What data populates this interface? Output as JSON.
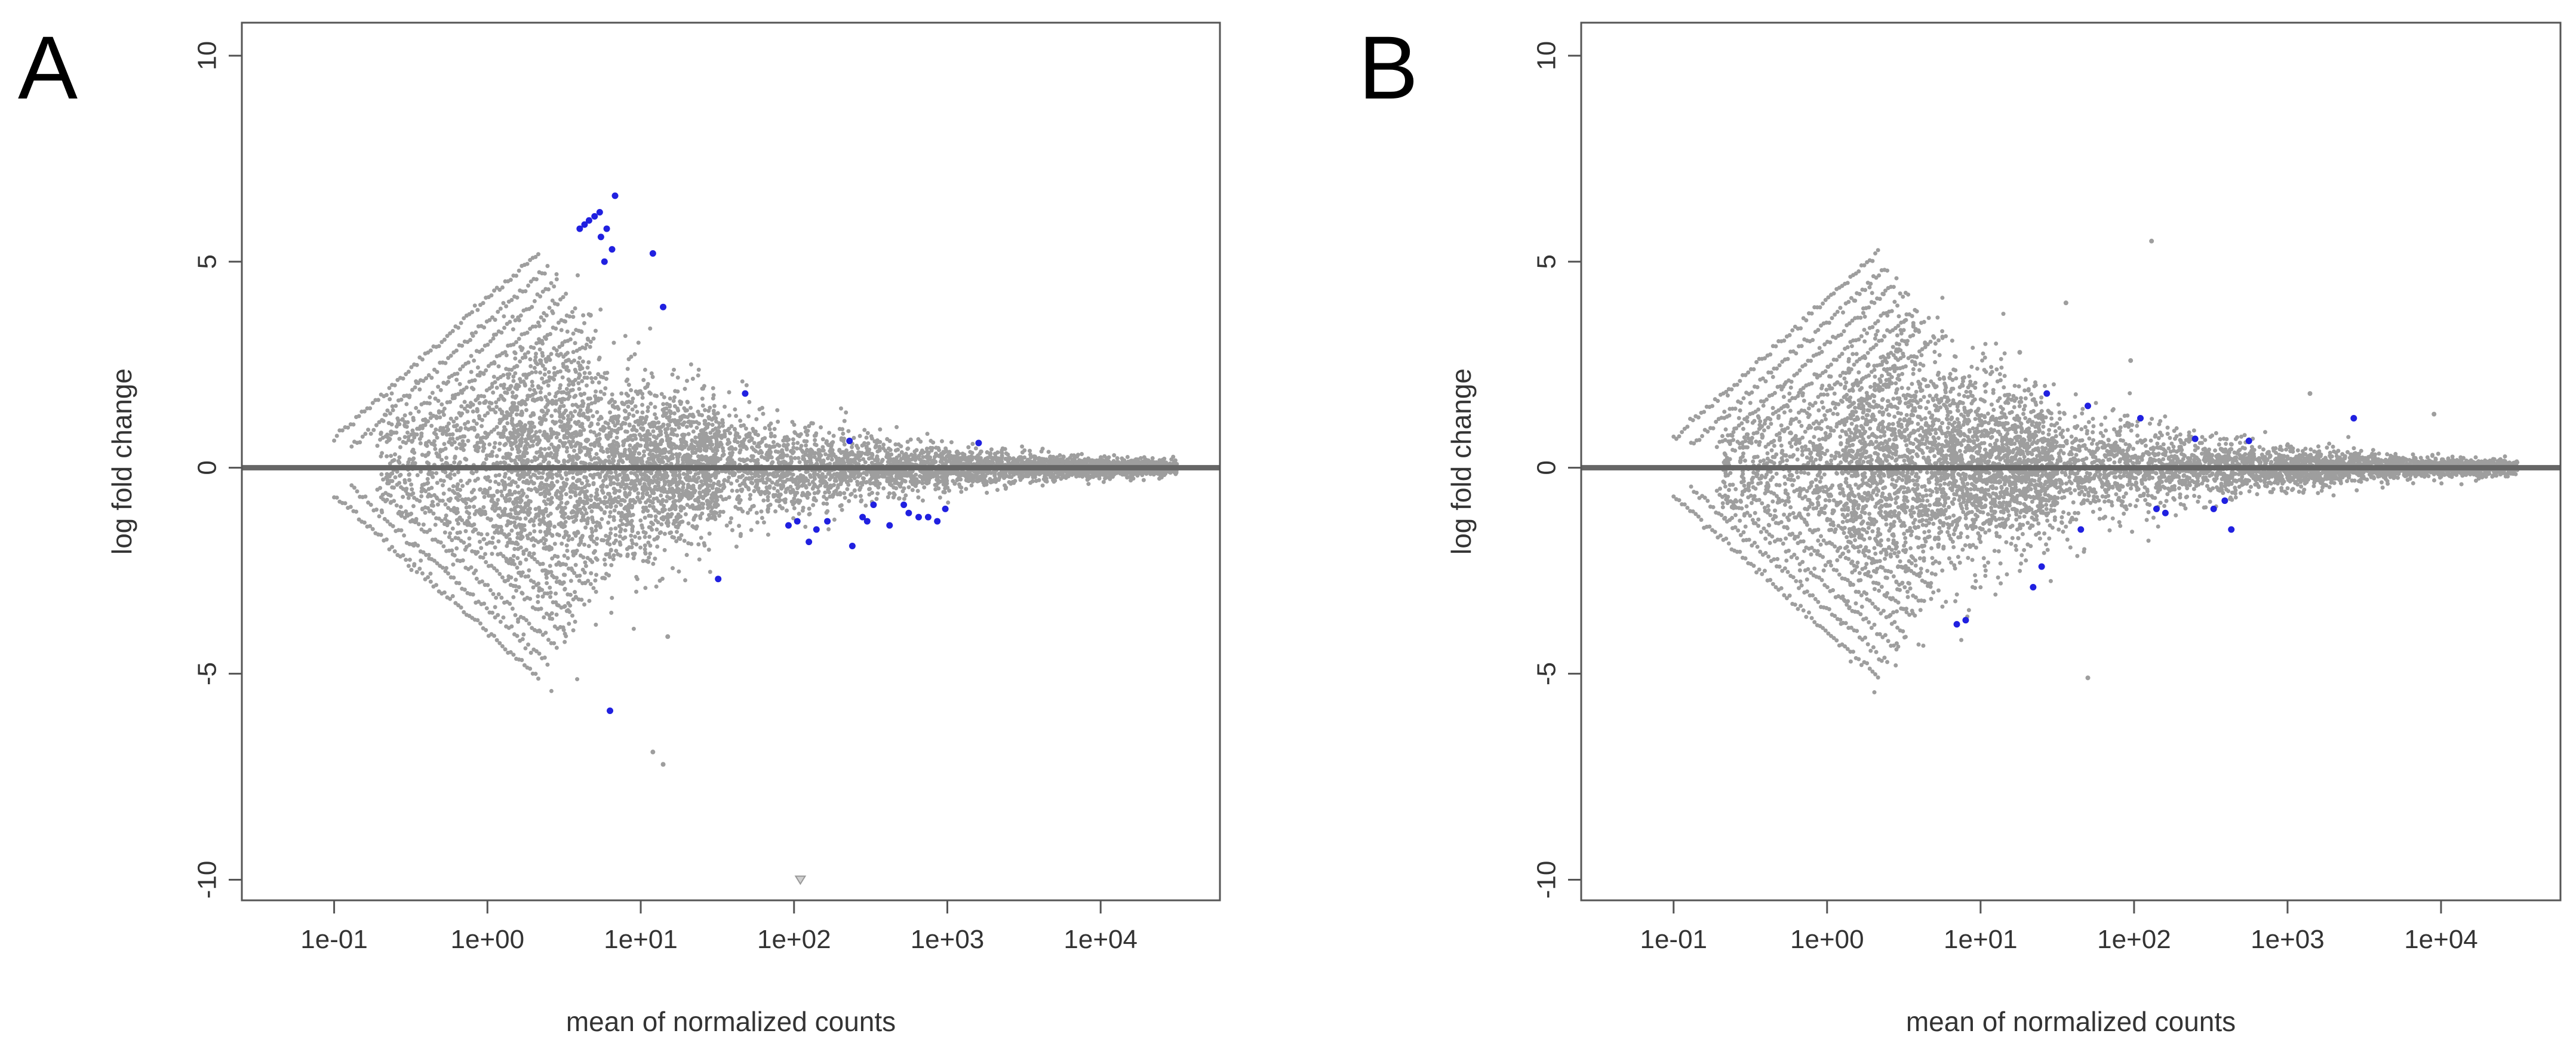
{
  "chart_data": [
    {
      "type": "scatter",
      "panel_label": "A",
      "title": "",
      "xlabel": "mean of normalized counts",
      "ylabel": "log fold change",
      "x_scale": "log10",
      "xlim": [
        0.025,
        60000
      ],
      "ylim": [
        -10.5,
        10.8
      ],
      "x_ticks": [
        0.1,
        1,
        10,
        100,
        1000,
        10000
      ],
      "x_tick_labels": [
        "1e-01",
        "1e+00",
        "1e+01",
        "1e+02",
        "1e+03",
        "1e+04"
      ],
      "y_ticks": [
        -10,
        -5,
        0,
        5,
        10
      ],
      "y_tick_labels": [
        "-10",
        "-5",
        "0",
        "5",
        "10"
      ],
      "reference_line_y": 0,
      "colors": {
        "not_significant": "#9e9e9e",
        "significant": "#2020e0",
        "reference_line": "#666666"
      },
      "cloud": {
        "max_abs_lfc": 6.5,
        "outliers": [
          [
            4.7,
            3.7
          ],
          [
            15,
            -4.1
          ],
          [
            28,
            1.2
          ],
          [
            12,
            -6.9
          ],
          [
            14,
            -7.2
          ]
        ]
      },
      "significant_points": [
        [
          4.0,
          5.8
        ],
        [
          4.3,
          5.9
        ],
        [
          4.6,
          6.0
        ],
        [
          5.0,
          6.1
        ],
        [
          5.4,
          6.2
        ],
        [
          6.8,
          6.6
        ],
        [
          5.5,
          5.6
        ],
        [
          6.0,
          5.8
        ],
        [
          6.5,
          5.3
        ],
        [
          5.8,
          5.0
        ],
        [
          12.0,
          5.2
        ],
        [
          14.0,
          3.9
        ],
        [
          48,
          1.8
        ],
        [
          230,
          0.65
        ],
        [
          1600,
          0.6
        ],
        [
          6.3,
          -5.9
        ],
        [
          32,
          -2.7
        ],
        [
          92,
          -1.4
        ],
        [
          105,
          -1.3
        ],
        [
          125,
          -1.8
        ],
        [
          140,
          -1.5
        ],
        [
          165,
          -1.3
        ],
        [
          240,
          -1.9
        ],
        [
          280,
          -1.2
        ],
        [
          300,
          -1.3
        ],
        [
          330,
          -0.9
        ],
        [
          420,
          -1.4
        ],
        [
          520,
          -0.9
        ],
        [
          560,
          -1.1
        ],
        [
          650,
          -1.2
        ],
        [
          750,
          -1.2
        ],
        [
          860,
          -1.3
        ],
        [
          970,
          -1.0
        ]
      ],
      "highlighted_extreme": [
        [
          110,
          -10.0
        ]
      ]
    },
    {
      "type": "scatter",
      "panel_label": "B",
      "title": "",
      "xlabel": "mean of normalized counts",
      "ylabel": "log fold change",
      "x_scale": "log10",
      "xlim": [
        0.025,
        60000
      ],
      "ylim": [
        -10.5,
        10.8
      ],
      "x_ticks": [
        0.1,
        1,
        10,
        100,
        1000,
        10000
      ],
      "x_tick_labels": [
        "1e-01",
        "1e+00",
        "1e+01",
        "1e+02",
        "1e+03",
        "1e+04"
      ],
      "y_ticks": [
        -10,
        -5,
        0,
        5,
        10
      ],
      "y_tick_labels": [
        "-10",
        "-5",
        "0",
        "5",
        "10"
      ],
      "reference_line_y": 0,
      "colors": {
        "not_significant": "#9e9e9e",
        "significant": "#2020e0",
        "reference_line": "#666666"
      },
      "cloud": {
        "max_abs_lfc": 5.5,
        "outliers": [
          [
            130,
            5.5
          ],
          [
            50,
            -5.1
          ],
          [
            18,
            2.8
          ],
          [
            36,
            4.0
          ],
          [
            95,
            2.6
          ],
          [
            1400,
            1.8
          ],
          [
            9000,
            1.3
          ]
        ]
      },
      "significant_points": [
        [
          7.0,
          -3.8
        ],
        [
          8.0,
          -3.7
        ],
        [
          22,
          -2.9
        ],
        [
          25,
          -2.4
        ],
        [
          27,
          1.8
        ],
        [
          45,
          -1.5
        ],
        [
          50,
          1.5
        ],
        [
          110,
          1.2
        ],
        [
          140,
          -1.0
        ],
        [
          160,
          -1.1
        ],
        [
          330,
          -1.0
        ],
        [
          390,
          -0.8
        ],
        [
          430,
          -1.5
        ],
        [
          560,
          0.65
        ],
        [
          2700,
          1.2
        ],
        [
          250,
          0.7
        ]
      ],
      "highlighted_extreme": []
    }
  ]
}
